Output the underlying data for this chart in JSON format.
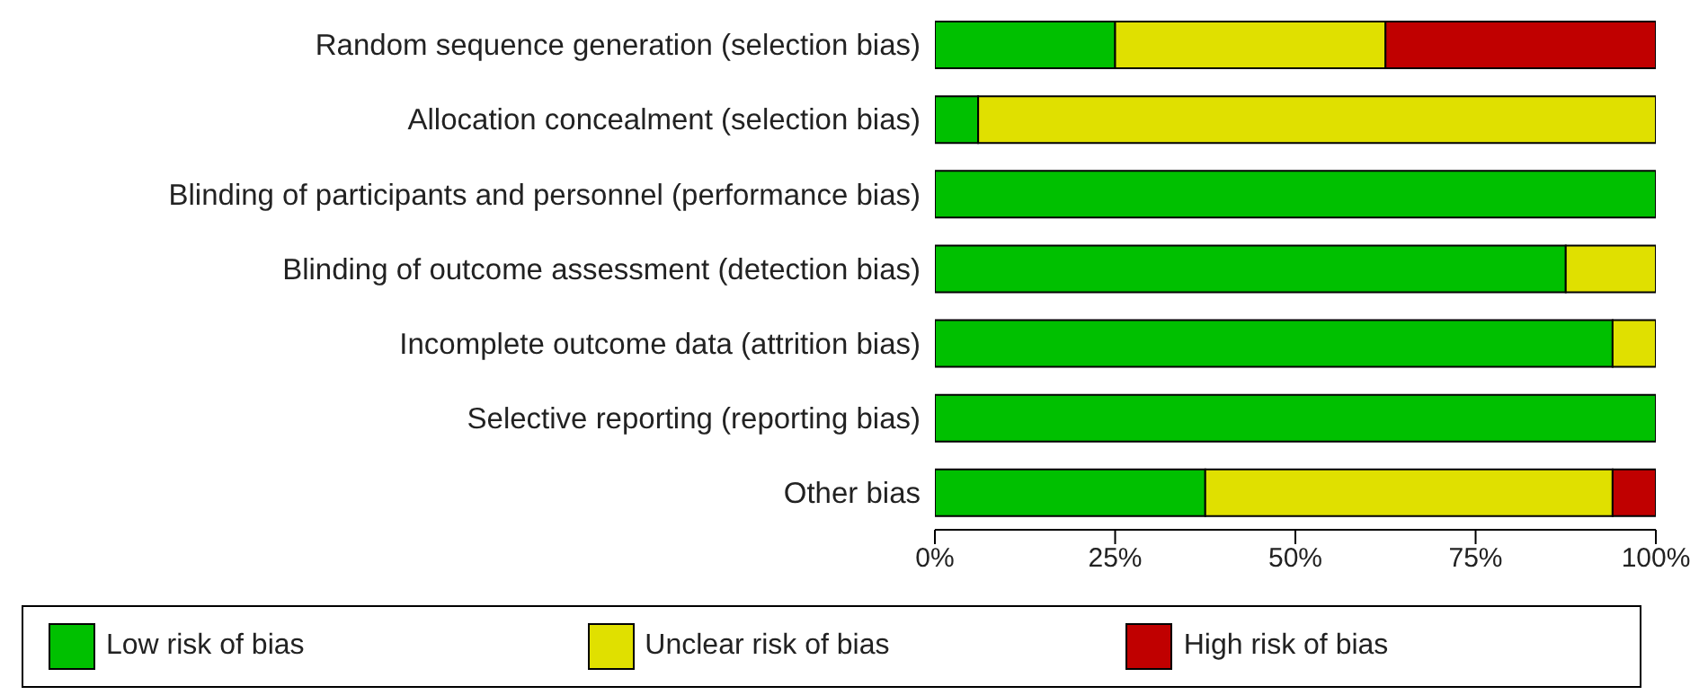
{
  "chart_data": {
    "type": "bar",
    "orientation": "horizontal",
    "stacked": true,
    "categories": [
      "Random sequence generation (selection bias)",
      "Allocation concealment (selection bias)",
      "Blinding of participants and personnel (performance bias)",
      "Blinding of outcome assessment (detection bias)",
      "Incomplete outcome data (attrition bias)",
      "Selective reporting (reporting bias)",
      "Other bias"
    ],
    "series": [
      {
        "name": "Low risk of bias",
        "color": "#00c000",
        "values": [
          25,
          6,
          100,
          87.5,
          94,
          100,
          37.5
        ]
      },
      {
        "name": "Unclear risk of bias",
        "color": "#e0e000",
        "values": [
          37.5,
          94,
          0,
          12.5,
          6,
          0,
          56.5
        ]
      },
      {
        "name": "High risk of bias",
        "color": "#c00000",
        "values": [
          37.5,
          0,
          0,
          0,
          0,
          0,
          6
        ]
      }
    ],
    "xlim": [
      0,
      100
    ],
    "xticks": [
      {
        "value": 0,
        "label": "0%"
      },
      {
        "value": 25,
        "label": "25%"
      },
      {
        "value": 50,
        "label": "50%"
      },
      {
        "value": 75,
        "label": "75%"
      },
      {
        "value": 100,
        "label": "100%"
      }
    ],
    "grid": false,
    "legend": "bottom"
  }
}
